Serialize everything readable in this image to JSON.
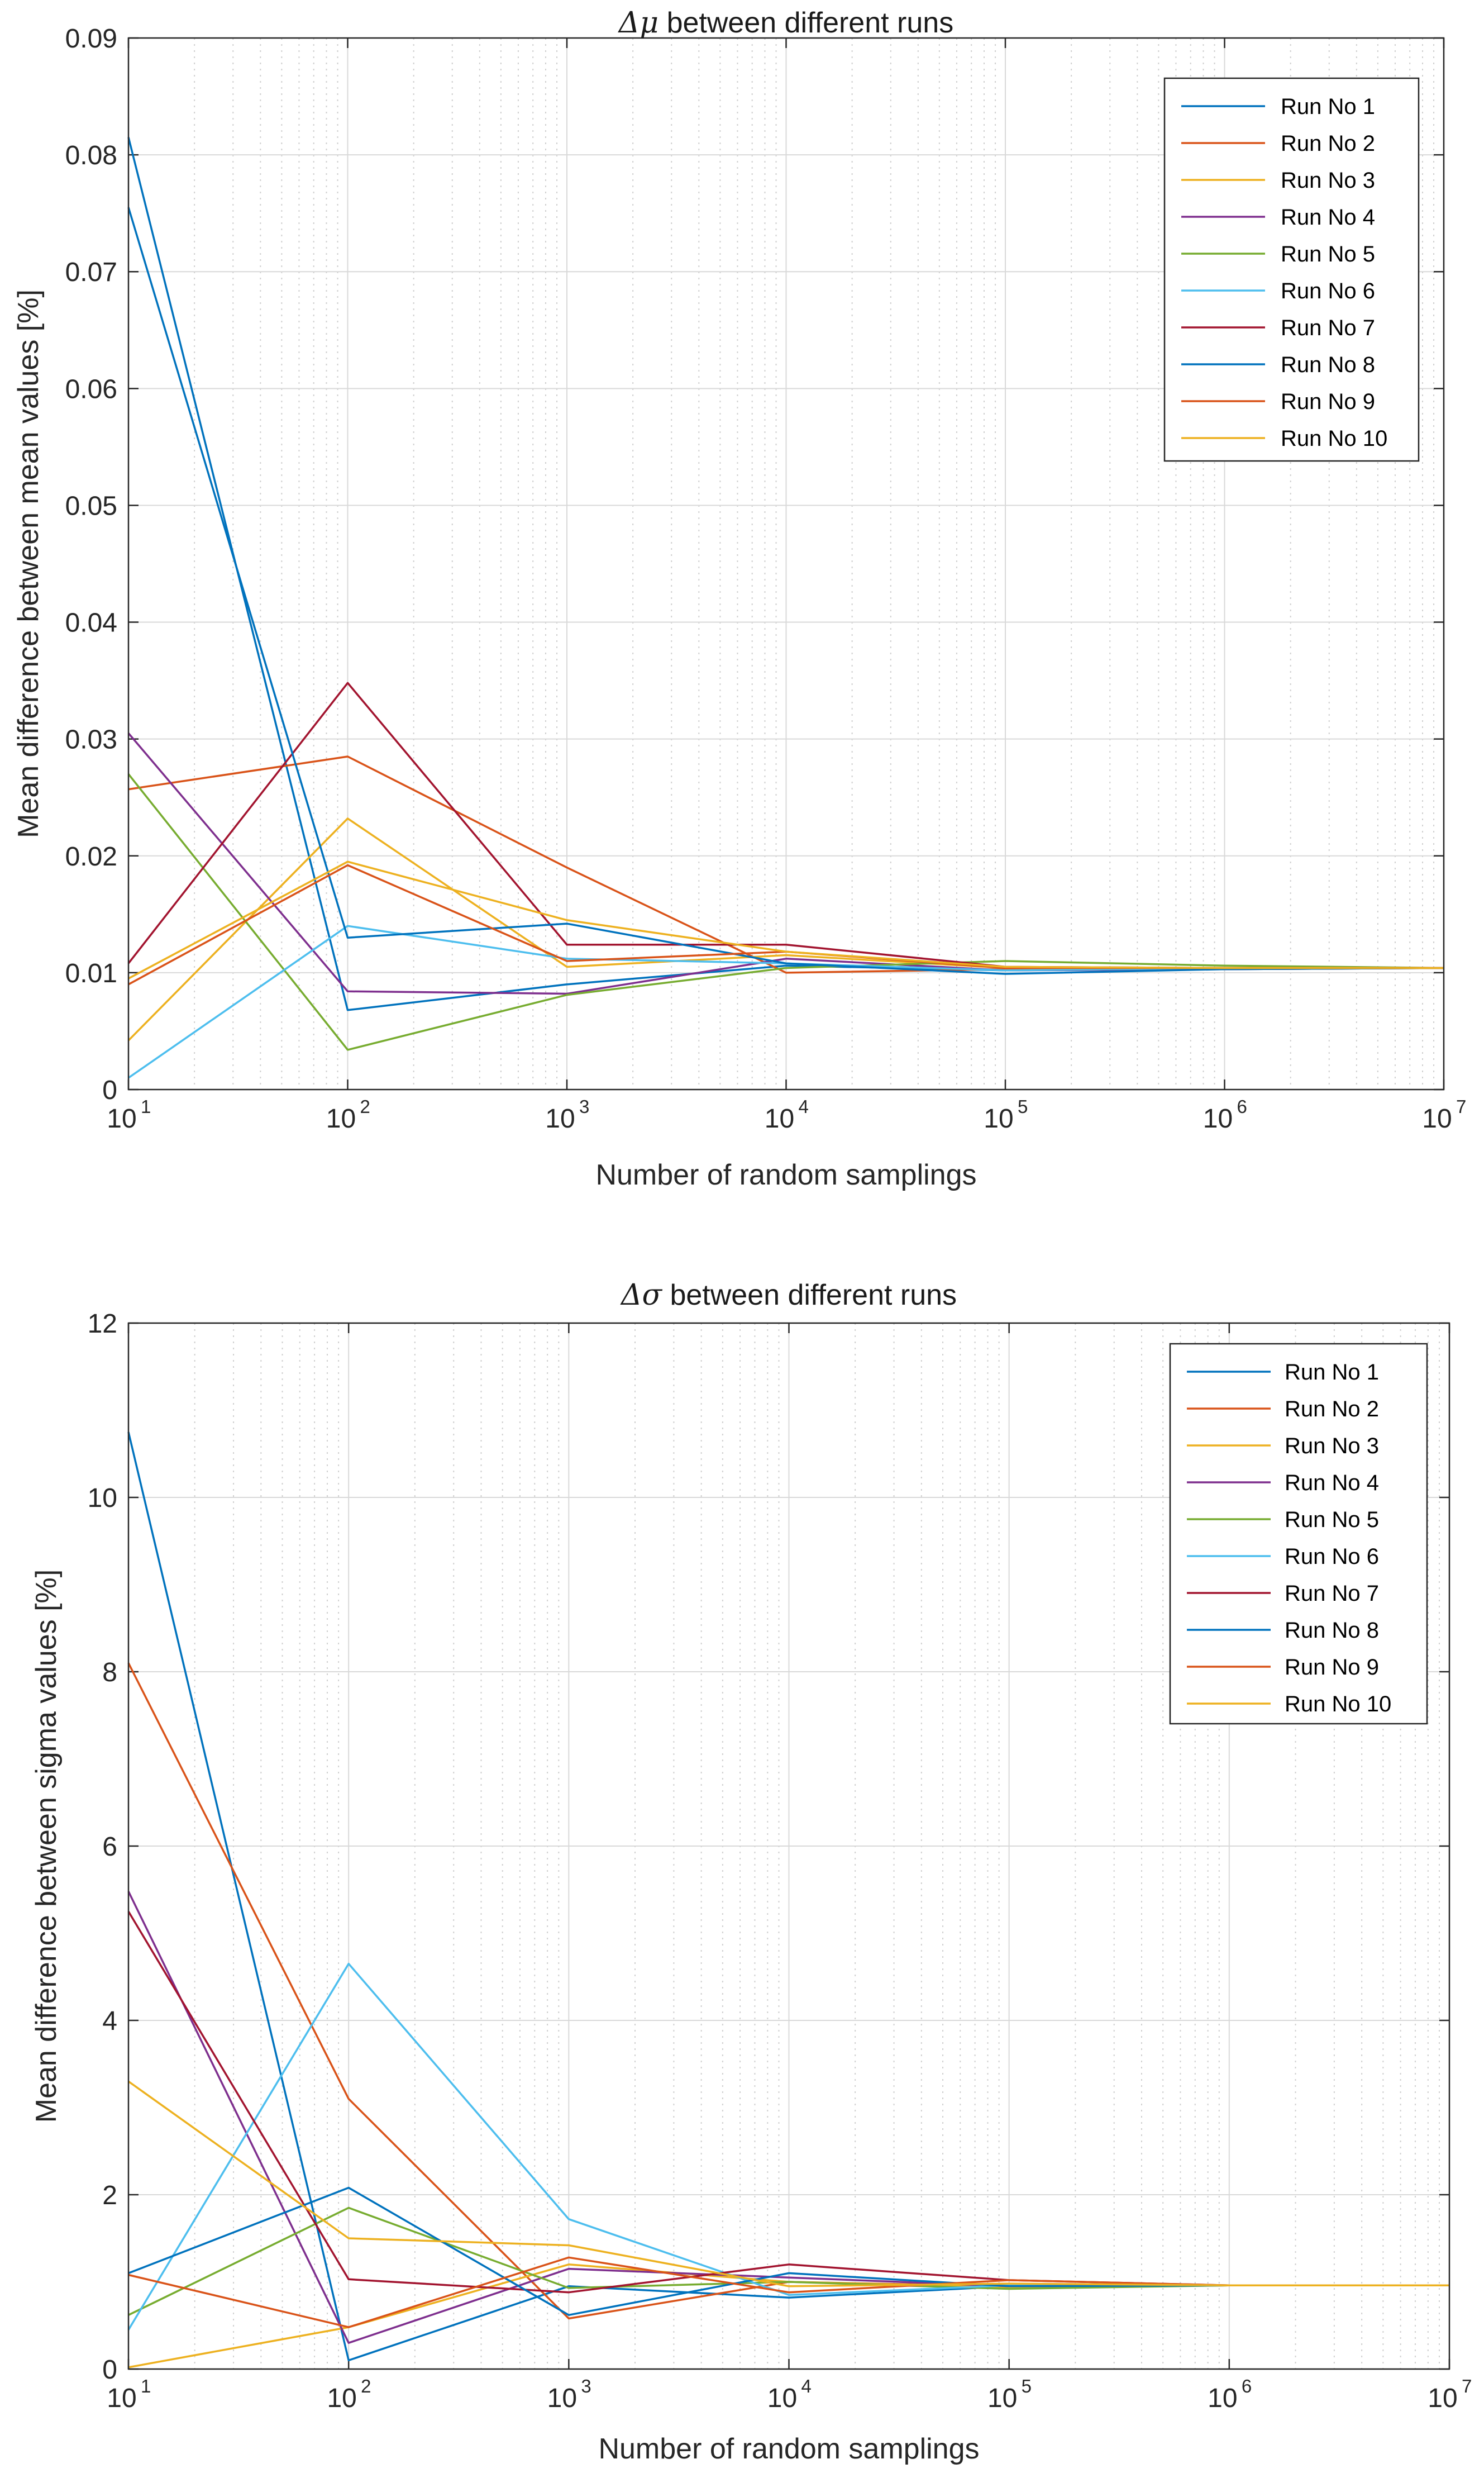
{
  "chart_data": [
    {
      "type": "line",
      "title_prefix": "Δμ",
      "title_suffix": " between different runs",
      "xlabel": "Number of random samplings",
      "ylabel": "Mean difference between mean values [%]",
      "xscale": "log",
      "x": [
        10,
        100,
        1000,
        10000,
        100000,
        1000000,
        10000000
      ],
      "xlim": [
        10,
        10000000
      ],
      "ylim": [
        0,
        0.09
      ],
      "yticks": [
        0,
        0.01,
        0.02,
        0.03,
        0.04,
        0.05,
        0.06,
        0.07,
        0.08,
        0.09
      ],
      "ytick_labels": [
        "0",
        "0.01",
        "0.02",
        "0.03",
        "0.04",
        "0.05",
        "0.06",
        "0.07",
        "0.08",
        "0.09"
      ],
      "xtick_base": "10",
      "xtick_exponents": [
        "1",
        "2",
        "3",
        "4",
        "5",
        "6",
        "7"
      ],
      "grid": true,
      "legend": "top-right",
      "series": [
        {
          "name": "Run No 1",
          "color": "#0072BD",
          "values": [
            0.0815,
            0.0068,
            0.009,
            0.0106,
            0.0102,
            0.0103,
            0.0104
          ]
        },
        {
          "name": "Run No 2",
          "color": "#D95319",
          "values": [
            0.0257,
            0.0285,
            0.019,
            0.01,
            0.0103,
            0.0104,
            0.0104
          ]
        },
        {
          "name": "Run No 3",
          "color": "#EDB120",
          "values": [
            0.0042,
            0.0232,
            0.0105,
            0.0115,
            0.0104,
            0.0104,
            0.0104
          ]
        },
        {
          "name": "Run No 4",
          "color": "#7E2F8E",
          "values": [
            0.0305,
            0.0084,
            0.0082,
            0.0112,
            0.0102,
            0.0103,
            0.0104
          ]
        },
        {
          "name": "Run No 5",
          "color": "#77AC30",
          "values": [
            0.027,
            0.0034,
            0.0081,
            0.0104,
            0.011,
            0.0106,
            0.0104
          ]
        },
        {
          "name": "Run No 6",
          "color": "#4DBEEE",
          "values": [
            0.001,
            0.014,
            0.0112,
            0.0108,
            0.0102,
            0.0104,
            0.0104
          ]
        },
        {
          "name": "Run No 7",
          "color": "#A2142F",
          "values": [
            0.0108,
            0.0348,
            0.0124,
            0.0124,
            0.0105,
            0.0104,
            0.0104
          ]
        },
        {
          "name": "Run No 8",
          "color": "#0072BD",
          "values": [
            0.0755,
            0.013,
            0.0142,
            0.0108,
            0.0099,
            0.0103,
            0.0104
          ]
        },
        {
          "name": "Run No 9",
          "color": "#D95319",
          "values": [
            0.009,
            0.0192,
            0.011,
            0.0118,
            0.0104,
            0.0104,
            0.0104
          ]
        },
        {
          "name": "Run No 10",
          "color": "#EDB120",
          "values": [
            0.0095,
            0.0195,
            0.0145,
            0.0118,
            0.0105,
            0.0104,
            0.0104
          ]
        }
      ]
    },
    {
      "type": "line",
      "title_prefix": "Δσ",
      "title_suffix": " between different runs",
      "xlabel": "Number of random samplings",
      "ylabel": "Mean difference between sigma values [%]",
      "xscale": "log",
      "x": [
        10,
        100,
        1000,
        10000,
        100000,
        1000000,
        10000000
      ],
      "xlim": [
        10,
        10000000
      ],
      "ylim": [
        0,
        12
      ],
      "yticks": [
        0,
        2,
        4,
        6,
        8,
        10,
        12
      ],
      "ytick_labels": [
        "0",
        "2",
        "4",
        "6",
        "8",
        "10",
        "12"
      ],
      "xtick_base": "10",
      "xtick_exponents": [
        "1",
        "2",
        "3",
        "4",
        "5",
        "6",
        "7"
      ],
      "grid": true,
      "legend": "top-right",
      "series": [
        {
          "name": "Run No 1",
          "color": "#0072BD",
          "values": [
            10.75,
            0.1,
            0.95,
            0.82,
            0.95,
            0.96,
            0.96
          ]
        },
        {
          "name": "Run No 2",
          "color": "#D95319",
          "values": [
            8.1,
            3.1,
            0.58,
            1.0,
            0.95,
            0.96,
            0.96
          ]
        },
        {
          "name": "Run No 3",
          "color": "#EDB120",
          "values": [
            0.02,
            0.48,
            1.2,
            1.0,
            0.94,
            0.96,
            0.96
          ]
        },
        {
          "name": "Run No 4",
          "color": "#7E2F8E",
          "values": [
            5.48,
            0.3,
            1.15,
            1.05,
            0.95,
            0.96,
            0.96
          ]
        },
        {
          "name": "Run No 5",
          "color": "#77AC30",
          "values": [
            0.62,
            1.85,
            0.93,
            1.0,
            0.92,
            0.96,
            0.96
          ]
        },
        {
          "name": "Run No 6",
          "color": "#4DBEEE",
          "values": [
            0.45,
            4.65,
            1.72,
            0.85,
            0.96,
            0.96,
            0.96
          ]
        },
        {
          "name": "Run No 7",
          "color": "#A2142F",
          "values": [
            5.25,
            1.03,
            0.88,
            1.2,
            1.02,
            0.96,
            0.96
          ]
        },
        {
          "name": "Run No 8",
          "color": "#0072BD",
          "values": [
            1.1,
            2.08,
            0.62,
            1.1,
            0.95,
            0.96,
            0.96
          ]
        },
        {
          "name": "Run No 9",
          "color": "#D95319",
          "values": [
            1.08,
            0.48,
            1.28,
            0.88,
            1.02,
            0.96,
            0.96
          ]
        },
        {
          "name": "Run No 10",
          "color": "#EDB120",
          "values": [
            3.3,
            1.5,
            1.42,
            0.95,
            0.98,
            0.96,
            0.96
          ]
        }
      ]
    }
  ]
}
